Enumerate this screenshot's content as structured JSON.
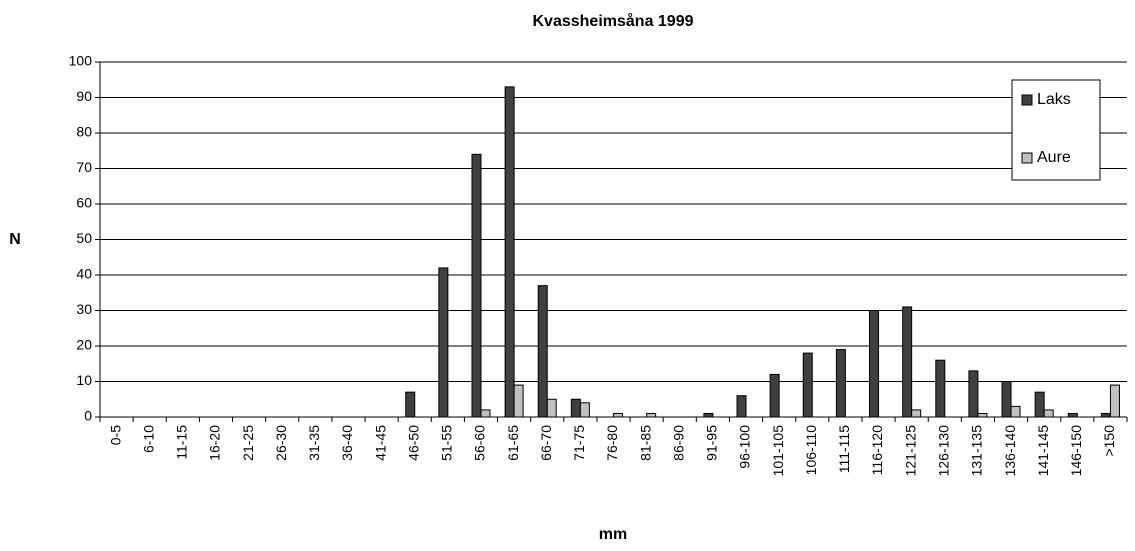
{
  "chart_data": {
    "type": "bar",
    "title": "Kvassheimsåna 1999",
    "x_label": "mm",
    "y_label": "N",
    "categories": [
      "0-5",
      "6-10",
      "11-15",
      "16-20",
      "21-25",
      "26-30",
      "31-35",
      "36-40",
      "41-45",
      "46-50",
      "51-55",
      "56-60",
      "61-65",
      "66-70",
      "71-75",
      "76-80",
      "81-85",
      "86-90",
      "91-95",
      "96-100",
      "101-105",
      "106-110",
      "111-115",
      "116-120",
      "121-125",
      "126-130",
      "131-135",
      "136-140",
      "141-145",
      "146-150",
      ">150"
    ],
    "series": [
      {
        "name": "Laks",
        "color": "#404040",
        "values": [
          0,
          0,
          0,
          0,
          0,
          0,
          0,
          0,
          0,
          7,
          42,
          74,
          93,
          37,
          5,
          0,
          0,
          0,
          1,
          6,
          12,
          18,
          19,
          30,
          31,
          16,
          13,
          10,
          7,
          1,
          1
        ]
      },
      {
        "name": "Aure",
        "color": "#c0c0c0",
        "values": [
          0,
          0,
          0,
          0,
          0,
          0,
          0,
          0,
          0,
          0,
          0,
          2,
          9,
          5,
          4,
          1,
          1,
          0,
          0,
          0,
          0,
          0,
          0,
          0,
          2,
          0,
          1,
          3,
          2,
          0,
          9
        ]
      }
    ],
    "ylim": [
      0,
      100
    ],
    "yticks": [
      0,
      10,
      20,
      30,
      40,
      50,
      60,
      70,
      80,
      90,
      100
    ],
    "grid": true,
    "legend": "top-right"
  }
}
